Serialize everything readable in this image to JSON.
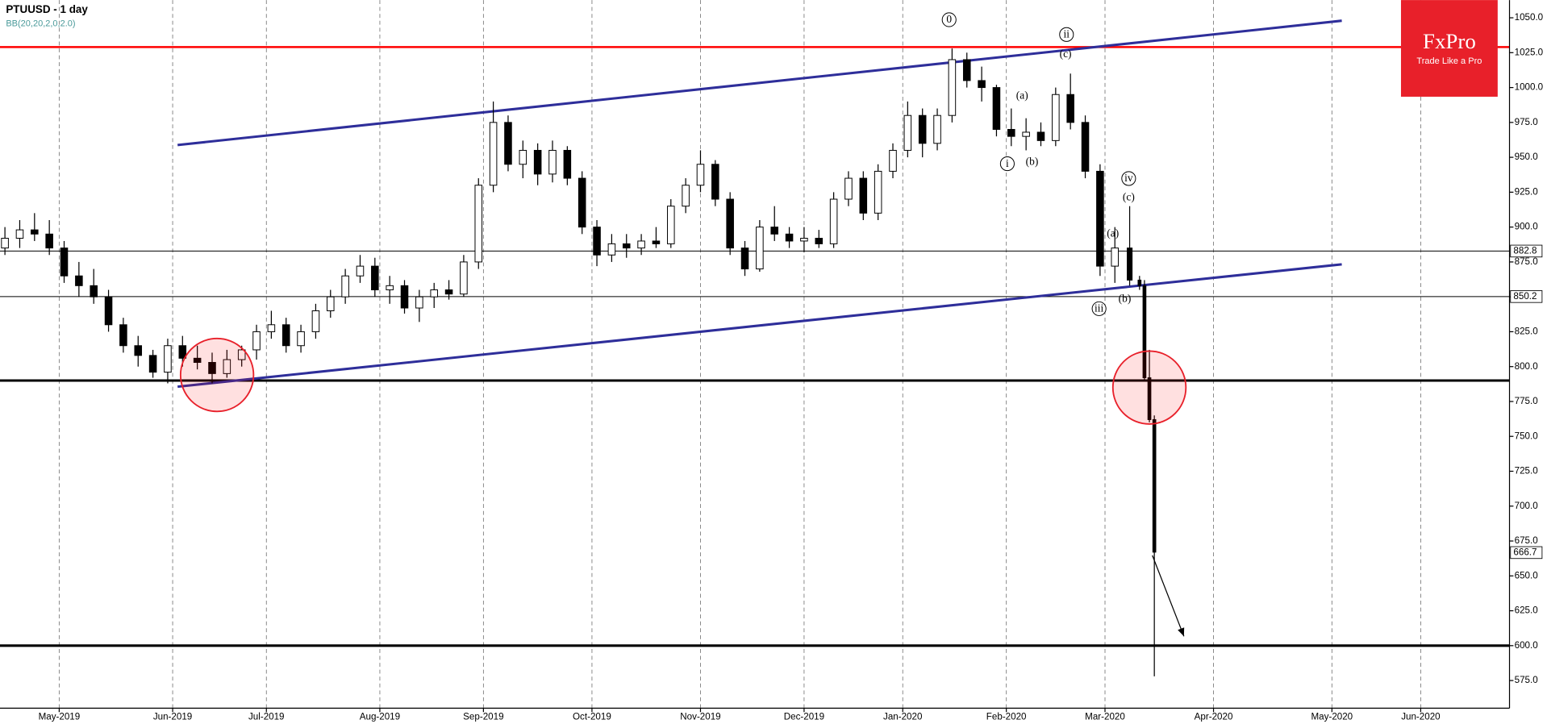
{
  "chart_data": {
    "type": "candlestick",
    "title": "PTUUSD - 1 day",
    "subtitle": "BB(20,20,2,0,2.0)",
    "xlim": [
      -1,
      305
    ],
    "ylim": [
      555.2,
      1062.7
    ],
    "xticks": [
      {
        "value": 11,
        "label": "May-2019"
      },
      {
        "value": 34,
        "label": "Jun-2019"
      },
      {
        "value": 53,
        "label": "Jul-2019"
      },
      {
        "value": 76,
        "label": "Aug-2019"
      },
      {
        "value": 97,
        "label": "Sep-2019"
      },
      {
        "value": 119,
        "label": "Oct-2019"
      },
      {
        "value": 141,
        "label": "Nov-2019"
      },
      {
        "value": 162,
        "label": "Dec-2019"
      },
      {
        "value": 182,
        "label": "Jan-2020"
      },
      {
        "value": 203,
        "label": "Feb-2020"
      },
      {
        "value": 223,
        "label": "Mar-2020"
      },
      {
        "value": 245,
        "label": "Apr-2020"
      },
      {
        "value": 269,
        "label": "May-2020"
      },
      {
        "value": 287,
        "label": "Jun-2020"
      }
    ],
    "yticks": [
      {
        "value": 1050,
        "label": "1050.0"
      },
      {
        "value": 1025,
        "label": "1025.0"
      },
      {
        "value": 1000,
        "label": "1000.0"
      },
      {
        "value": 975,
        "label": "975.0"
      },
      {
        "value": 950,
        "label": "950.0"
      },
      {
        "value": 925,
        "label": "925.0"
      },
      {
        "value": 900,
        "label": "900.0"
      },
      {
        "value": 875,
        "label": "875.0"
      },
      {
        "value": 850,
        "label": "850.0"
      },
      {
        "value": 825,
        "label": "825.0"
      },
      {
        "value": 800,
        "label": "800.0"
      },
      {
        "value": 775,
        "label": "775.0"
      },
      {
        "value": 750,
        "label": "750.0"
      },
      {
        "value": 725,
        "label": "725.0"
      },
      {
        "value": 700,
        "label": "700.0"
      },
      {
        "value": 675,
        "label": "675.0"
      },
      {
        "value": 650,
        "label": "650.0"
      },
      {
        "value": 625,
        "label": "625.0"
      },
      {
        "value": 600,
        "label": "600.0"
      },
      {
        "value": 575,
        "label": "575.0"
      }
    ],
    "x": [
      0,
      3,
      6,
      9,
      12,
      15,
      18,
      21,
      24,
      27,
      30,
      33,
      36,
      39,
      42,
      45,
      48,
      51,
      54,
      57,
      60,
      63,
      66,
      69,
      72,
      75,
      78,
      81,
      84,
      87,
      90,
      93,
      96,
      99,
      102,
      105,
      108,
      111,
      114,
      117,
      120,
      123,
      126,
      129,
      132,
      135,
      138,
      141,
      144,
      147,
      150,
      153,
      156,
      159,
      162,
      165,
      168,
      171,
      174,
      177,
      180,
      183,
      186,
      189,
      192,
      195,
      198,
      201,
      204,
      207,
      210,
      213,
      216,
      219,
      222,
      225,
      228,
      230,
      231,
      232,
      233
    ],
    "open": [
      885,
      892,
      898,
      895,
      885,
      865,
      858,
      850,
      830,
      815,
      808,
      796,
      815,
      806,
      803,
      795,
      805,
      812,
      825,
      830,
      815,
      825,
      840,
      850,
      865,
      872,
      855,
      858,
      842,
      850,
      855,
      852,
      875,
      930,
      975,
      945,
      955,
      938,
      955,
      935,
      900,
      880,
      888,
      885,
      890,
      888,
      915,
      930,
      945,
      920,
      885,
      870,
      900,
      895,
      890,
      892,
      888,
      920,
      935,
      910,
      940,
      955,
      980,
      960,
      980,
      1020,
      1005,
      1000,
      970,
      965,
      968,
      962,
      995,
      975,
      940,
      872,
      885,
      862,
      858,
      792,
      762
    ],
    "high": [
      900,
      905,
      910,
      905,
      890,
      875,
      870,
      855,
      835,
      822,
      812,
      820,
      822,
      815,
      810,
      812,
      815,
      830,
      840,
      835,
      830,
      845,
      855,
      870,
      880,
      878,
      865,
      862,
      855,
      860,
      862,
      880,
      935,
      990,
      980,
      962,
      960,
      962,
      958,
      940,
      905,
      895,
      895,
      895,
      900,
      920,
      935,
      955,
      948,
      925,
      890,
      905,
      915,
      900,
      900,
      898,
      925,
      940,
      940,
      945,
      960,
      990,
      985,
      985,
      1028,
      1025,
      1015,
      1002,
      985,
      978,
      975,
      1000,
      1010,
      980,
      945,
      900,
      915,
      865,
      862,
      812,
      765
    ],
    "low": [
      880,
      885,
      890,
      880,
      860,
      850,
      845,
      825,
      810,
      800,
      792,
      788,
      800,
      798,
      788,
      792,
      800,
      805,
      820,
      810,
      810,
      820,
      835,
      845,
      860,
      850,
      845,
      838,
      832,
      842,
      848,
      850,
      870,
      925,
      940,
      935,
      930,
      932,
      930,
      895,
      872,
      875,
      878,
      880,
      885,
      885,
      910,
      925,
      915,
      880,
      865,
      868,
      890,
      885,
      882,
      885,
      885,
      915,
      905,
      905,
      935,
      950,
      950,
      955,
      975,
      1000,
      990,
      965,
      958,
      955,
      958,
      958,
      970,
      935,
      865,
      860,
      858,
      855,
      790,
      760,
      578
    ],
    "close": [
      892,
      898,
      895,
      885,
      865,
      858,
      850,
      830,
      815,
      808,
      796,
      815,
      806,
      803,
      795,
      805,
      812,
      825,
      830,
      815,
      825,
      840,
      850,
      865,
      872,
      855,
      858,
      842,
      850,
      855,
      852,
      875,
      930,
      975,
      945,
      955,
      938,
      955,
      935,
      900,
      880,
      888,
      885,
      890,
      888,
      915,
      930,
      945,
      920,
      885,
      870,
      900,
      895,
      890,
      892,
      888,
      920,
      935,
      910,
      940,
      955,
      980,
      960,
      980,
      1020,
      1005,
      1000,
      970,
      965,
      968,
      962,
      995,
      975,
      940,
      872,
      885,
      862,
      858,
      792,
      762,
      667
    ],
    "up_color": "#ffffff",
    "down_color": "#000000",
    "price_markers": [
      882.8,
      850.2,
      666.7
    ],
    "levels": [
      {
        "value": 1029,
        "color": "#ff0000",
        "width": 2
      },
      {
        "value": 882.8,
        "color": "#000000",
        "width": 0.8
      },
      {
        "value": 850.2,
        "color": "#000000",
        "width": 0.8
      },
      {
        "value": 790,
        "color": "#000000",
        "width": 2.5
      },
      {
        "value": 600,
        "color": "#000000",
        "width": 2.5
      }
    ],
    "trendlines": [
      {
        "x": [
          35,
          271
        ],
        "y": [
          958.8,
          1047.9
        ],
        "color": "#2e2e9a"
      },
      {
        "x": [
          35,
          271
        ],
        "y": [
          785.6,
          873.3
        ],
        "color": "#2e2e9a"
      }
    ],
    "circles": [
      {
        "x": 43,
        "y": 794
      },
      {
        "x": 232,
        "y": 785
      }
    ],
    "arrow": {
      "x": [
        232.6,
        239
      ],
      "y": [
        664.7,
        606.7
      ]
    },
    "wave_labels": [
      {
        "text": "0",
        "x": 191.4,
        "y": 1048.6,
        "circled": true
      },
      {
        "text": "ii",
        "x": 215.2,
        "y": 1038,
        "circled": true
      },
      {
        "text": "(c)",
        "x": 215,
        "y": 1023.8,
        "circled": false
      },
      {
        "text": "(a)",
        "x": 206.2,
        "y": 994.2,
        "circled": false
      },
      {
        "text": "i",
        "x": 203.2,
        "y": 945.4,
        "circled": true
      },
      {
        "text": "(b)",
        "x": 208.2,
        "y": 946.8,
        "circled": false
      },
      {
        "text": "iv",
        "x": 227.8,
        "y": 934.8,
        "circled": true
      },
      {
        "text": "(c)",
        "x": 227.8,
        "y": 921.4,
        "circled": false
      },
      {
        "text": "(a)",
        "x": 224.6,
        "y": 895.2,
        "circled": false
      },
      {
        "text": "(b)",
        "x": 227,
        "y": 848.6,
        "circled": false
      },
      {
        "text": "iii",
        "x": 221.8,
        "y": 841.5,
        "circled": true
      }
    ]
  },
  "logo": {
    "name": "FxPro",
    "tagline": "Trade Like a Pro"
  }
}
